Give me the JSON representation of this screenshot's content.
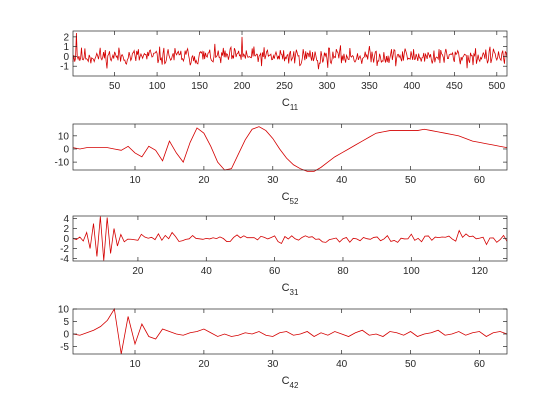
{
  "colors": {
    "series": "#d40000",
    "axis": "#262626"
  },
  "chart_data": [
    {
      "type": "line",
      "xlabel": "C",
      "xlabel_sub": "11",
      "xlim": [
        1,
        512
      ],
      "ylim": [
        -2,
        2.6
      ],
      "xticks": [
        50,
        100,
        150,
        200,
        250,
        300,
        350,
        400,
        450,
        500
      ],
      "yticks": [
        2,
        1,
        0,
        -1
      ],
      "series": [
        {
          "kind": "noise",
          "n": 512,
          "amplitude": 0.45,
          "seed": 11,
          "spikes": [
            [
              5,
              2.4
            ],
            [
              200,
              2.0
            ],
            [
              290,
              -1.3
            ],
            [
              465,
              -1.2
            ]
          ]
        }
      ]
    },
    {
      "type": "line",
      "xlabel": "C",
      "xlabel_sub": "52",
      "xlim": [
        1,
        64
      ],
      "ylim": [
        -16,
        19
      ],
      "xticks": [
        10,
        20,
        30,
        40,
        50,
        60
      ],
      "yticks": [
        10,
        0,
        -10
      ],
      "series": [
        {
          "kind": "points",
          "x": [
            1,
            2,
            3,
            4,
            5,
            6,
            7,
            8,
            9,
            10,
            11,
            12,
            13,
            14,
            15,
            16,
            17,
            18,
            19,
            20,
            21,
            22,
            23,
            24,
            25,
            26,
            27,
            28,
            29,
            30,
            31,
            32,
            33,
            34,
            35,
            36,
            37,
            38,
            39,
            40,
            41,
            42,
            43,
            44,
            45,
            46,
            47,
            48,
            49,
            50,
            51,
            52,
            53,
            54,
            55,
            56,
            57,
            58,
            59,
            60,
            61,
            62,
            63,
            64
          ],
          "y": [
            1,
            0,
            1,
            1,
            1,
            1,
            0,
            -1,
            2,
            -3,
            -6,
            2,
            -1,
            -9,
            6,
            -3,
            -10,
            5,
            16,
            12,
            2,
            -10,
            -16,
            -15,
            -4,
            7,
            15,
            17,
            14,
            8,
            0,
            -7,
            -12,
            -15,
            -17,
            -17,
            -14,
            -10,
            -6,
            -3,
            0,
            3,
            6,
            9,
            12,
            13,
            14,
            14,
            14,
            14,
            14,
            15,
            14,
            13,
            12,
            11,
            10,
            8,
            6,
            5,
            4,
            3,
            2,
            1
          ]
        }
      ]
    },
    {
      "type": "line",
      "xlabel": "C",
      "xlabel_sub": "31",
      "xlim": [
        1,
        128
      ],
      "ylim": [
        -4.5,
        4.5
      ],
      "xticks": [
        20,
        40,
        60,
        80,
        100,
        120
      ],
      "yticks": [
        4,
        2,
        0,
        -2,
        -4
      ],
      "series": [
        {
          "kind": "burst",
          "n": 128,
          "seed": 31,
          "head": [
            [
              1,
              0
            ],
            [
              2,
              -0.2
            ],
            [
              3,
              0.3
            ],
            [
              4,
              -0.5
            ],
            [
              5,
              1.2
            ],
            [
              6,
              -2.0
            ],
            [
              7,
              3.0
            ],
            [
              8,
              -3.6
            ],
            [
              9,
              4.4
            ],
            [
              10,
              -4.4
            ],
            [
              11,
              4.2
            ],
            [
              12,
              -3.0
            ],
            [
              13,
              2.0
            ],
            [
              14,
              -1.5
            ],
            [
              15,
              0.8
            ]
          ],
          "amplitude": 0.5,
          "spikes": [
            [
              30,
              1.2
            ],
            [
              62,
              -1.0
            ],
            [
              114,
              1.6
            ],
            [
              122,
              -1.2
            ]
          ]
        }
      ]
    },
    {
      "type": "line",
      "xlabel": "C",
      "xlabel_sub": "42",
      "xlim": [
        1,
        64
      ],
      "ylim": [
        -8,
        10
      ],
      "xticks": [
        10,
        20,
        30,
        40,
        50,
        60
      ],
      "yticks": [
        10,
        5,
        0,
        -5
      ],
      "series": [
        {
          "kind": "points",
          "x": [
            1,
            2,
            3,
            4,
            5,
            6,
            7,
            8,
            9,
            10,
            11,
            12,
            13,
            14,
            15,
            16,
            17,
            18,
            19,
            20,
            21,
            22,
            23,
            24,
            25,
            26,
            27,
            28,
            29,
            30,
            31,
            32,
            33,
            34,
            35,
            36,
            37,
            38,
            39,
            40,
            41,
            42,
            43,
            44,
            45,
            46,
            47,
            48,
            49,
            50,
            51,
            52,
            53,
            54,
            55,
            56,
            57,
            58,
            59,
            60,
            61,
            62,
            63,
            64
          ],
          "y": [
            0,
            -0.5,
            0.5,
            1.5,
            3,
            5.5,
            10,
            -8,
            7,
            -4,
            4,
            -1,
            -2,
            2,
            1,
            0,
            -0.5,
            0.5,
            1,
            2,
            0.5,
            -1,
            0,
            -1,
            -0.5,
            0.5,
            0,
            1,
            -0.5,
            -1,
            0.5,
            1,
            -0.5,
            0,
            1,
            -1,
            0.5,
            -0.5,
            1,
            0,
            -1,
            0.5,
            1.5,
            -0.5,
            0,
            -1,
            1,
            0.5,
            -0.5,
            1,
            -1,
            0,
            0.5,
            1.5,
            -0.5,
            0,
            1,
            -0.5,
            0.5,
            1,
            -1,
            0.5,
            1,
            0
          ]
        }
      ]
    }
  ]
}
